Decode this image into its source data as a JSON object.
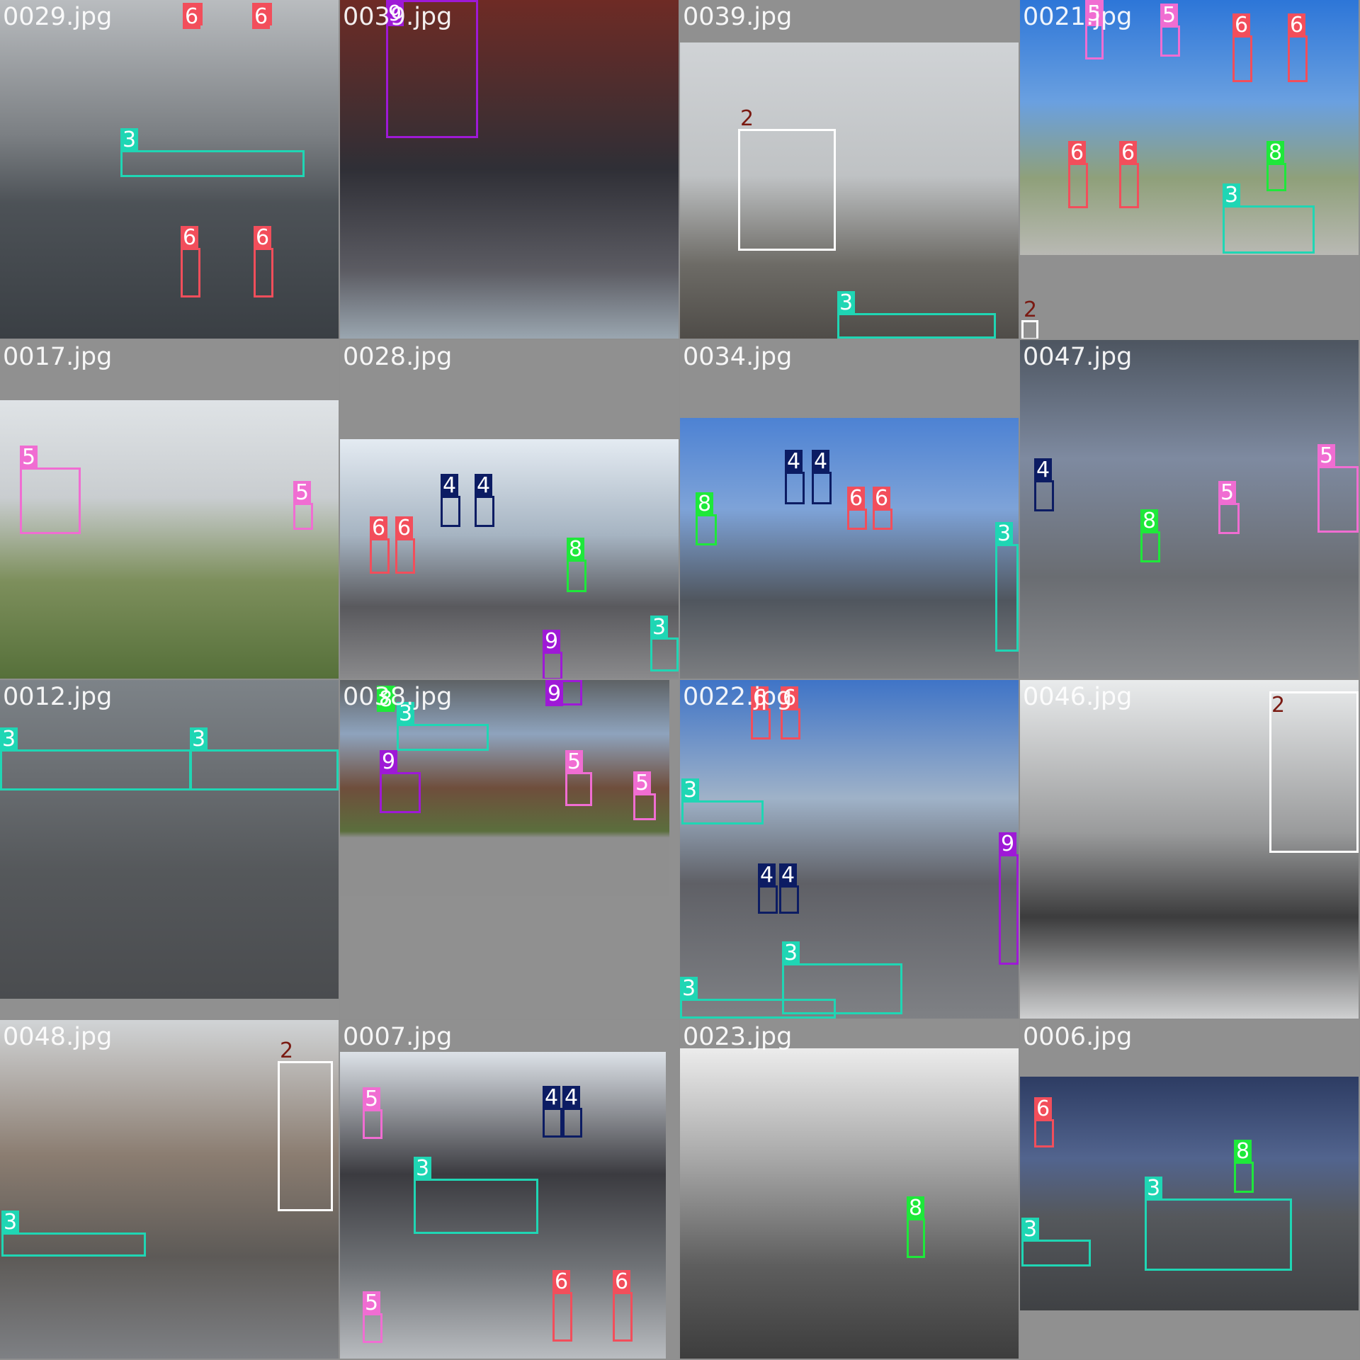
{
  "colors": {
    "2": "#ffffff",
    "3": "#1fd6b4",
    "4": "#0c1c63",
    "5": "#f06dd2",
    "6": "#f24e5b",
    "8": "#1ee83a",
    "9": "#9e19d6"
  },
  "tiles": [
    {
      "filename": "0029.jpg",
      "background": "linear-gradient(#b9bcbf 0%,#7b7f83 40%,#4d5257 60%,#3a3f44 100%)",
      "labels": [
        {
          "cls": "6",
          "kind": "traffic-light"
        },
        {
          "cls": "6",
          "kind": "traffic-light"
        },
        {
          "cls": "3",
          "kind": "crosswalk"
        },
        {
          "cls": "6",
          "kind": "traffic-light"
        },
        {
          "cls": "6",
          "kind": "traffic-light"
        }
      ]
    },
    {
      "filename": "0039.jpg",
      "background": "linear-gradient(#6e2b25 0%,#2f2f36 50%,#5c5c63 80%,#9aa6b0 100%)",
      "labels": [
        {
          "cls": "9",
          "kind": "stop-sign"
        }
      ]
    },
    {
      "filename": "0039.jpg",
      "background": "linear-gradient(#d0d3d6 0%,#bfc2c4 45%,#6d6b66 75%,#4f4c48 100%)",
      "labels": [
        {
          "cls": "2",
          "kind": "pedestrian-sign"
        },
        {
          "cls": "3",
          "kind": "crosswalk"
        }
      ]
    },
    {
      "filename": "0021.jpg",
      "background": "linear-gradient(#2d76d8 0%,#6aa0e0 40%,#8fa07a 70%,#b9b9b4 100%)",
      "labels": [
        {
          "cls": "5",
          "kind": "do-not-enter"
        },
        {
          "cls": "5",
          "kind": "do-not-enter"
        },
        {
          "cls": "6",
          "kind": "traffic-light"
        },
        {
          "cls": "6",
          "kind": "traffic-light"
        },
        {
          "cls": "6",
          "kind": "traffic-light"
        },
        {
          "cls": "6",
          "kind": "traffic-light"
        },
        {
          "cls": "8",
          "kind": "pedestrian-signal"
        },
        {
          "cls": "3",
          "kind": "crosswalk"
        },
        {
          "cls": "2",
          "kind": "pedestrian-sign"
        }
      ]
    },
    {
      "filename": "0017.jpg",
      "background": "linear-gradient(#dfe3e6 0%,#c9cdd0 35%,#7d8f5c 65%,#56703a 100%)",
      "labels": [
        {
          "cls": "5",
          "kind": "do-not-enter"
        },
        {
          "cls": "5",
          "kind": "do-not-enter"
        }
      ]
    },
    {
      "filename": "0028.jpg",
      "background": "linear-gradient(#e4ebf2 0%,#a6b4c2 40%,#59595d 70%,#8a8a8c 100%)",
      "labels": [
        {
          "cls": "4",
          "kind": "walk-signal"
        },
        {
          "cls": "4",
          "kind": "walk-signal"
        },
        {
          "cls": "6",
          "kind": "traffic-light"
        },
        {
          "cls": "6",
          "kind": "traffic-light"
        },
        {
          "cls": "8",
          "kind": "pedestrian-signal"
        },
        {
          "cls": "3",
          "kind": "crosswalk"
        },
        {
          "cls": "9",
          "kind": "stop-sign"
        }
      ]
    },
    {
      "filename": "0034.jpg",
      "background": "linear-gradient(#4d82d3 0%,#7ea3d8 35%,#50565e 70%,#7c7e81 100%)",
      "labels": [
        {
          "cls": "4",
          "kind": "walk-signal"
        },
        {
          "cls": "4",
          "kind": "walk-signal"
        },
        {
          "cls": "8",
          "kind": "pedestrian-signal"
        },
        {
          "cls": "6",
          "kind": "traffic-light"
        },
        {
          "cls": "6",
          "kind": "traffic-light"
        },
        {
          "cls": "3",
          "kind": "crosswalk"
        }
      ]
    },
    {
      "filename": "0047.jpg",
      "background": "linear-gradient(#4d5560 0%,#7e8aa0 35%,#6a6d72 70%,#8b8d90 100%)",
      "labels": [
        {
          "cls": "4",
          "kind": "walk-signal"
        },
        {
          "cls": "8",
          "kind": "pedestrian-signal"
        },
        {
          "cls": "5",
          "kind": "do-not-enter"
        },
        {
          "cls": "5",
          "kind": "do-not-enter"
        }
      ]
    },
    {
      "filename": "0012.jpg",
      "background": "linear-gradient(#7d8388 0%,#6a6e72 30%,#55585b 60%,#4a4c4f 100%)",
      "labels": [
        {
          "cls": "3",
          "kind": "crosswalk"
        },
        {
          "cls": "3",
          "kind": "crosswalk"
        }
      ]
    },
    {
      "filename": "0038.jpg",
      "background": "linear-gradient(#5e6265 0%,#8ea3bd 25%,#6f4e3c 50%,#5b6e3d 70%,#8f8f8f 73%,#8f8f8f 100%)",
      "labels": [
        {
          "cls": "8",
          "kind": "pedestrian-signal"
        },
        {
          "cls": "3",
          "kind": "crosswalk"
        },
        {
          "cls": "9",
          "kind": "stop-sign"
        },
        {
          "cls": "9",
          "kind": "stop-sign"
        },
        {
          "cls": "5",
          "kind": "do-not-enter"
        },
        {
          "cls": "5",
          "kind": "do-not-enter"
        }
      ]
    },
    {
      "filename": "0022.jpg",
      "background": "linear-gradient(#3f74c7 0%,#9fb2c8 35%,#5f6066 60%,#7f8185 100%)",
      "labels": [
        {
          "cls": "6",
          "kind": "traffic-light"
        },
        {
          "cls": "6",
          "kind": "traffic-light"
        },
        {
          "cls": "3",
          "kind": "crosswalk"
        },
        {
          "cls": "4",
          "kind": "walk-signal"
        },
        {
          "cls": "4",
          "kind": "walk-signal"
        },
        {
          "cls": "9",
          "kind": "stop-sign"
        },
        {
          "cls": "3",
          "kind": "crosswalk"
        },
        {
          "cls": "3",
          "kind": "crosswalk"
        }
      ]
    },
    {
      "filename": "0046.jpg",
      "background": "linear-gradient(#e9ebec 0%,#9a9b9c 45%,#3c3c3d 70%,#cfd0d1 100%)",
      "labels": [
        {
          "cls": "2",
          "kind": "pedestrian-sign"
        }
      ]
    },
    {
      "filename": "0048.jpg",
      "background": "linear-gradient(#d1d4d6 0%,#8b7d71 40%,#5d5a57 70%,#7e8084 100%)",
      "labels": [
        {
          "cls": "2",
          "kind": "pedestrian-sign"
        },
        {
          "cls": "3",
          "kind": "crosswalk"
        }
      ]
    },
    {
      "filename": "0007.jpg",
      "background": "linear-gradient(#dde2e8 0%,#3b3b40 40%,#6f7276 70%,#b9bcc0 100%)",
      "labels": [
        {
          "cls": "5",
          "kind": "do-not-enter"
        },
        {
          "cls": "4",
          "kind": "walk-signal"
        },
        {
          "cls": "4",
          "kind": "walk-signal"
        },
        {
          "cls": "3",
          "kind": "crosswalk"
        },
        {
          "cls": "5",
          "kind": "do-not-enter"
        },
        {
          "cls": "6",
          "kind": "traffic-light"
        },
        {
          "cls": "6",
          "kind": "traffic-light"
        }
      ]
    },
    {
      "filename": "0023.jpg",
      "background": "linear-gradient(#ececec 0%,#a9a9a9 35%,#5e5e5e 70%,#3d3d3d 100%)",
      "labels": [
        {
          "cls": "8",
          "kind": "pedestrian-signal"
        }
      ]
    },
    {
      "filename": "0006.jpg",
      "background": "linear-gradient(#2d3c63 0%,#52648e 35%,#55585c 60%,#3f4144 100%)",
      "labels": [
        {
          "cls": "6",
          "kind": "traffic-light"
        },
        {
          "cls": "8",
          "kind": "pedestrian-signal"
        },
        {
          "cls": "3",
          "kind": "crosswalk"
        },
        {
          "cls": "3",
          "kind": "crosswalk"
        }
      ]
    }
  ]
}
